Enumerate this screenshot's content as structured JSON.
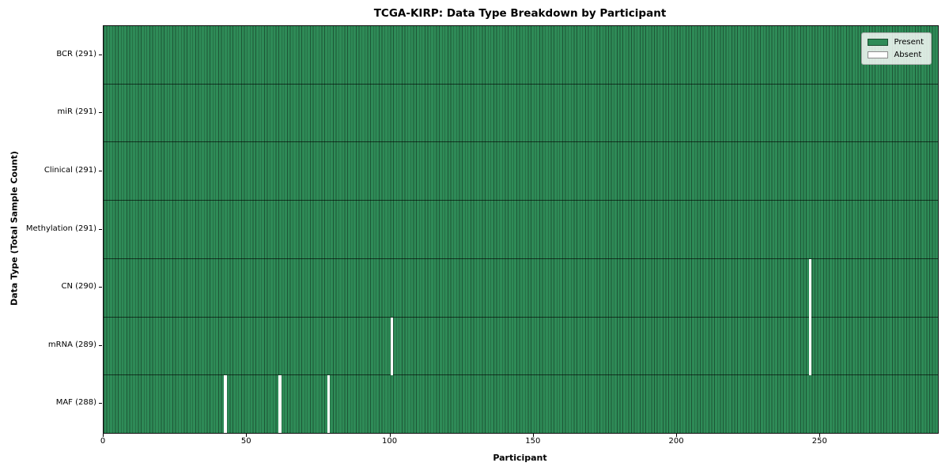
{
  "chart_data": {
    "type": "heatmap",
    "title": "TCGA-KIRP: Data Type Breakdown by Participant",
    "xlabel": "Participant",
    "ylabel": "Data Type (Total Sample Count)",
    "x_ticks": [
      0,
      50,
      100,
      150,
      200,
      250
    ],
    "x_range": [
      0,
      291
    ],
    "n_participants": 291,
    "grid": false,
    "legend_position": "upper right",
    "legend": [
      {
        "label": "Present",
        "color": "#2e8b57"
      },
      {
        "label": "Absent",
        "color": "#ffffff"
      }
    ],
    "colors": {
      "present": "#2e8b57",
      "absent": "#ffffff",
      "cell_edge": "rgba(0,0,0,0.38)",
      "row_separator": "rgba(0,0,0,0.62)"
    },
    "rows": [
      {
        "label": "BCR (291)",
        "data_type": "BCR",
        "total_samples": 291,
        "absent_participants": []
      },
      {
        "label": "miR (291)",
        "data_type": "miR",
        "total_samples": 291,
        "absent_participants": []
      },
      {
        "label": "Clinical (291)",
        "data_type": "Clinical",
        "total_samples": 291,
        "absent_participants": []
      },
      {
        "label": "Methylation (291)",
        "data_type": "Methylation",
        "total_samples": 291,
        "absent_participants": []
      },
      {
        "label": "CN (290)",
        "data_type": "CN",
        "total_samples": 290,
        "absent_participants": [
          246
        ]
      },
      {
        "label": "mRNA (289)",
        "data_type": "mRNA",
        "total_samples": 289,
        "absent_participants": [
          100,
          246
        ]
      },
      {
        "label": "MAF (288)",
        "data_type": "MAF",
        "total_samples": 288,
        "absent_participants": [
          42,
          61,
          78
        ]
      }
    ]
  }
}
